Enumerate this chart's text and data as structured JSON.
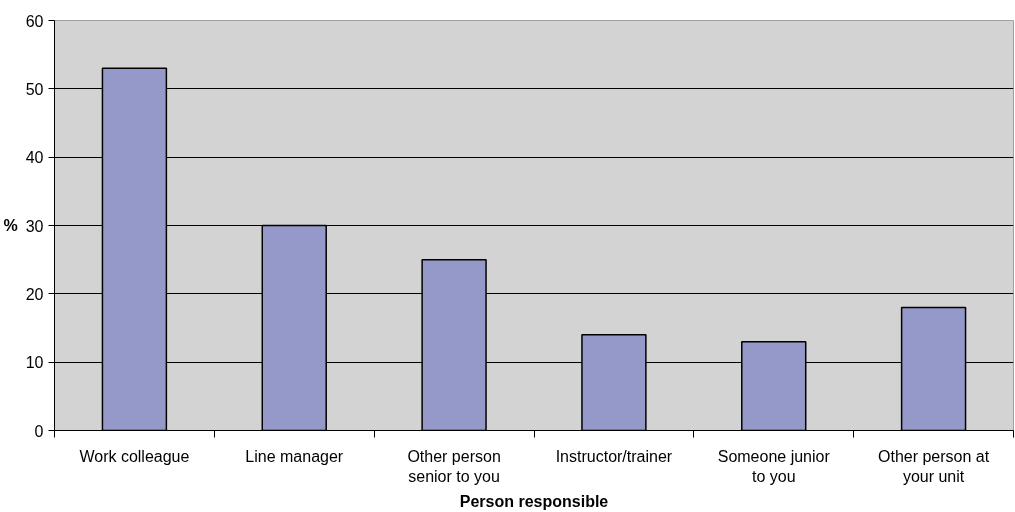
{
  "chart_data": {
    "type": "bar",
    "xlabel": "Person responsible",
    "ylabel": "%",
    "categories": [
      "Work colleague",
      "Line manager",
      "Other person senior to you",
      "Instructor/trainer",
      "Someone junior to you",
      "Other person at your unit"
    ],
    "values": [
      53,
      30,
      25,
      14,
      13,
      18
    ],
    "color": "#9499c9",
    "ylim": [
      0,
      60
    ],
    "yticks": [
      0,
      10,
      20,
      30,
      40,
      50,
      60
    ],
    "grid": "y"
  }
}
